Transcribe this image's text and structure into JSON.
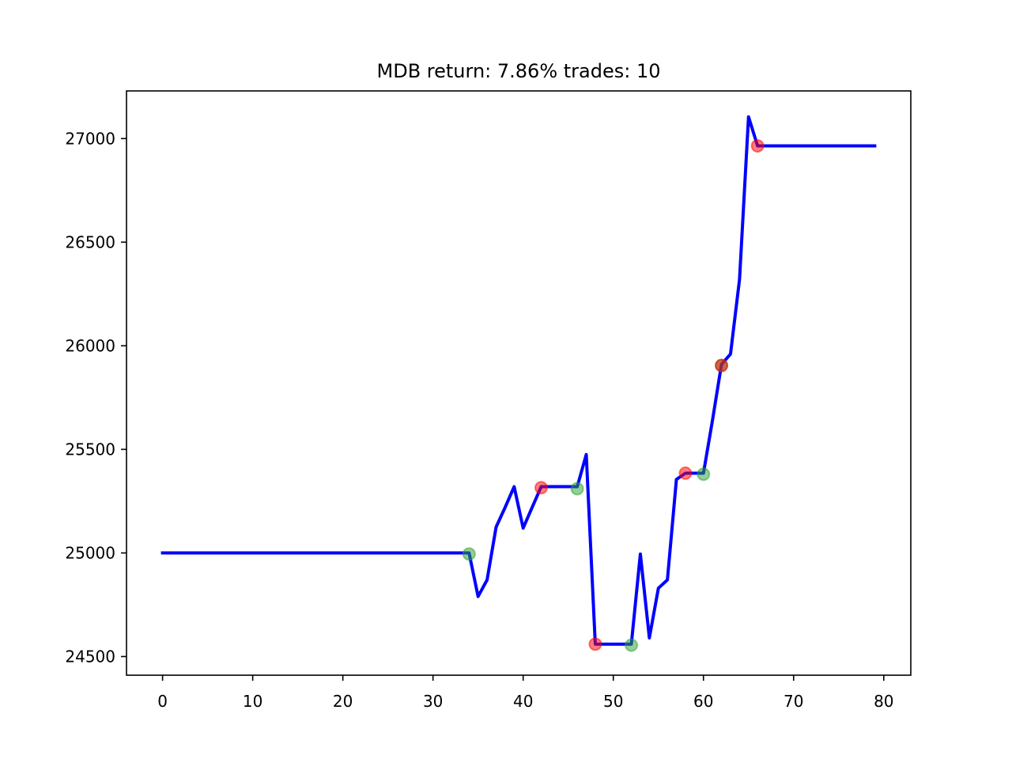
{
  "chart_data": {
    "type": "line",
    "title": "MDB return: 7.86% trades: 10",
    "xlabel": "",
    "ylabel": "",
    "xlim": [
      -4,
      83
    ],
    "ylim": [
      24410,
      27230
    ],
    "xticks": [
      0,
      10,
      20,
      30,
      40,
      50,
      60,
      70,
      80
    ],
    "yticks": [
      24500,
      25000,
      25500,
      26000,
      26500,
      27000
    ],
    "grid": false,
    "series": [
      {
        "color": "#0000ff",
        "x": [
          0,
          1,
          2,
          3,
          4,
          5,
          6,
          7,
          8,
          9,
          10,
          11,
          12,
          13,
          14,
          15,
          16,
          17,
          18,
          19,
          20,
          21,
          22,
          23,
          24,
          25,
          26,
          27,
          28,
          29,
          30,
          31,
          32,
          33,
          34,
          35,
          36,
          37,
          38,
          39,
          40,
          41,
          42,
          43,
          44,
          45,
          46,
          47,
          48,
          49,
          50,
          51,
          52,
          53,
          54,
          55,
          56,
          57,
          58,
          59,
          60,
          61,
          62,
          63,
          64,
          65,
          66,
          67,
          68,
          69,
          70,
          71,
          72,
          73,
          74,
          75,
          76,
          77,
          78,
          79
        ],
        "y": [
          25000,
          25000,
          25000,
          25000,
          25000,
          25000,
          25000,
          25000,
          25000,
          25000,
          25000,
          25000,
          25000,
          25000,
          25000,
          25000,
          25000,
          25000,
          25000,
          25000,
          25000,
          25000,
          25000,
          25000,
          25000,
          25000,
          25000,
          25000,
          25000,
          25000,
          25000,
          25000,
          25000,
          25000,
          25000,
          24790,
          24870,
          25125,
          25220,
          25320,
          25120,
          25220,
          25320,
          25320,
          25320,
          25320,
          25320,
          25475,
          24560,
          24560,
          24560,
          24560,
          24560,
          24995,
          24590,
          24830,
          24870,
          25355,
          25385,
          25385,
          25385,
          25640,
          25910,
          25960,
          26320,
          27105,
          26965,
          26965,
          26965,
          26965,
          26965,
          26965,
          26965,
          26965,
          26965,
          26965,
          26965,
          26965,
          26965,
          26965
        ]
      }
    ],
    "markers": [
      {
        "x": 34,
        "y": 24995,
        "color": "#2ca02c"
      },
      {
        "x": 42,
        "y": 25315,
        "color": "#ff0000"
      },
      {
        "x": 46,
        "y": 25310,
        "color": "#2ca02c"
      },
      {
        "x": 48,
        "y": 24560,
        "color": "#ff0000"
      },
      {
        "x": 52,
        "y": 24555,
        "color": "#2ca02c"
      },
      {
        "x": 58,
        "y": 25385,
        "color": "#ff0000"
      },
      {
        "x": 60,
        "y": 25380,
        "color": "#2ca02c"
      },
      {
        "x": 62,
        "y": 25905,
        "color": "#2ca02c"
      },
      {
        "x": 62,
        "y": 25905,
        "color": "#ff0000"
      },
      {
        "x": 66,
        "y": 26965,
        "color": "#ff0000"
      }
    ]
  }
}
